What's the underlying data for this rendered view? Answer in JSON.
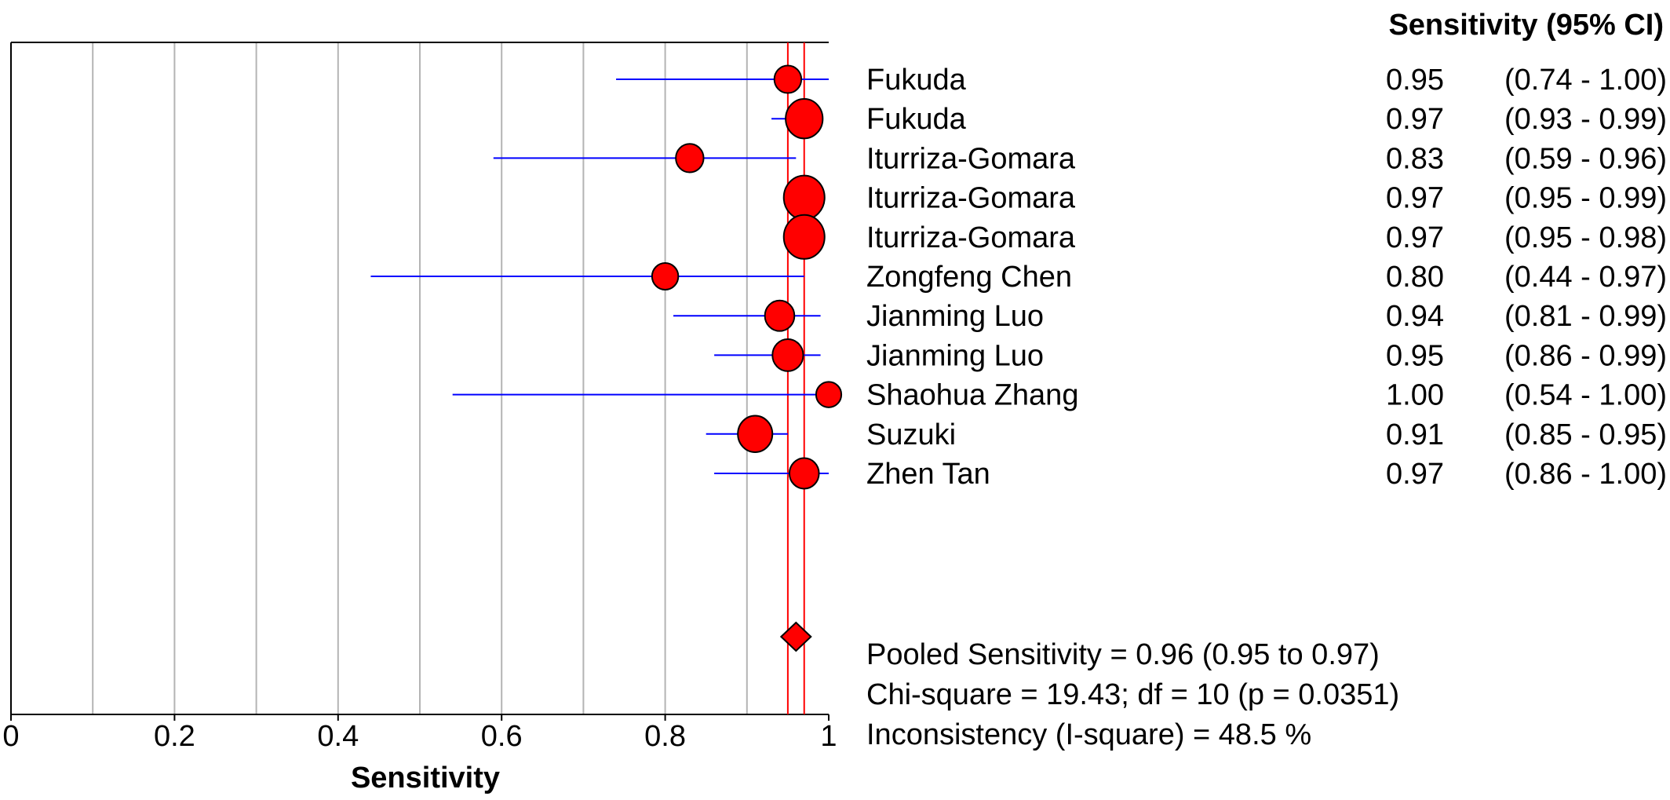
{
  "chart_data": {
    "type": "forest",
    "header": "Sensitivity (95% CI)",
    "xlabel": "Sensitivity",
    "xlim": [
      0,
      1
    ],
    "xticks": [
      "0",
      "0.2",
      "0.4",
      "0.6",
      "0.8",
      "1"
    ],
    "grid": true,
    "studies": [
      {
        "name": "Fukuda",
        "estimate": 0.95,
        "lower": 0.74,
        "upper": 1.0,
        "est_label": "0.95",
        "ci_label": "(0.74 - 1.00)",
        "weight": 0.45
      },
      {
        "name": "Fukuda",
        "estimate": 0.97,
        "lower": 0.93,
        "upper": 0.99,
        "est_label": "0.97",
        "ci_label": "(0.93 - 0.99)",
        "weight": 0.85
      },
      {
        "name": "Iturriza-Gomara",
        "estimate": 0.83,
        "lower": 0.59,
        "upper": 0.96,
        "est_label": "0.83",
        "ci_label": "(0.59 - 0.96)",
        "weight": 0.48
      },
      {
        "name": "Iturriza-Gomara",
        "estimate": 0.97,
        "lower": 0.95,
        "upper": 0.99,
        "est_label": "0.97",
        "ci_label": "(0.95 - 0.99)",
        "weight": 1.0
      },
      {
        "name": "Iturriza-Gomara",
        "estimate": 0.97,
        "lower": 0.95,
        "upper": 0.98,
        "est_label": "0.97",
        "ci_label": "(0.95 - 0.98)",
        "weight": 1.0
      },
      {
        "name": "Zongfeng Chen",
        "estimate": 0.8,
        "lower": 0.44,
        "upper": 0.97,
        "est_label": "0.80",
        "ci_label": "(0.44 - 0.97)",
        "weight": 0.42
      },
      {
        "name": "Jianming Luo",
        "estimate": 0.94,
        "lower": 0.81,
        "upper": 0.99,
        "est_label": "0.94",
        "ci_label": "(0.81 - 0.99)",
        "weight": 0.55
      },
      {
        "name": "Jianming Luo",
        "estimate": 0.95,
        "lower": 0.86,
        "upper": 0.99,
        "est_label": "0.95",
        "ci_label": "(0.86 - 0.99)",
        "weight": 0.6
      },
      {
        "name": "Shaohua Zhang",
        "estimate": 1.0,
        "lower": 0.54,
        "upper": 1.0,
        "est_label": "1.00",
        "ci_label": "(0.54 - 1.00)",
        "weight": 0.38
      },
      {
        "name": "Suzuki",
        "estimate": 0.91,
        "lower": 0.85,
        "upper": 0.95,
        "est_label": "0.91",
        "ci_label": "(0.85 - 0.95)",
        "weight": 0.75
      },
      {
        "name": "Zhen Tan",
        "estimate": 0.97,
        "lower": 0.86,
        "upper": 1.0,
        "est_label": "0.97",
        "ci_label": "(0.86 - 1.00)",
        "weight": 0.55
      }
    ],
    "pooled": {
      "estimate": 0.96,
      "lower": 0.95,
      "upper": 0.97
    },
    "summary_lines": [
      "Pooled Sensitivity = 0.96 (0.95 to 0.97)",
      "Chi-square = 19.43; df =  10 (p = 0.0351)",
      "Inconsistency (I-square) = 48.5 %"
    ],
    "colors": {
      "marker_fill": "#ff0000",
      "ci_line": "#0000ff",
      "pooled_line": "#ff0000",
      "grid": "#b4b4b4",
      "axis": "#000000"
    }
  }
}
